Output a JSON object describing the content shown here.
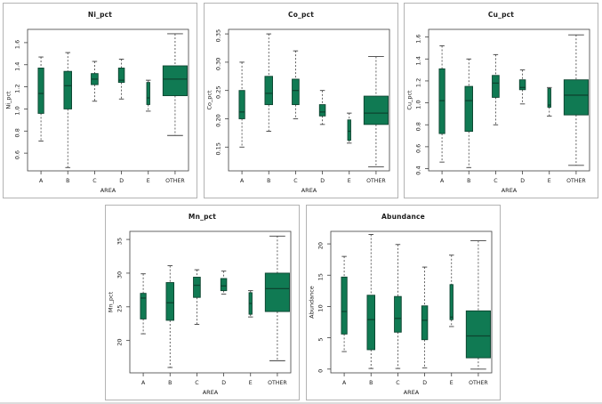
{
  "figure": {
    "background": "#ffffff",
    "panel_border_color": "#b3b3b3"
  },
  "style": {
    "box_fill": "#107a53",
    "box_border": "#0d4430",
    "median_color": "#0d4430",
    "whisker_color": "#3f3f3f",
    "frame_color": "#3f3f3f",
    "text_color": "#1a1a1a"
  },
  "chart_data": [
    {
      "type": "boxplot",
      "title": "Ni_pct",
      "xlabel": "AREA",
      "ylabel": "Ni_pct",
      "categories": [
        "A",
        "B",
        "C",
        "D",
        "E",
        "OTHER"
      ],
      "ylim": [
        0.44,
        1.72
      ],
      "yticks": [
        {
          "v": 0.6,
          "label": "0.6"
        },
        {
          "v": 0.8,
          "label": "0.8"
        },
        {
          "v": 1.0,
          "label": "1.0"
        },
        {
          "v": 1.2,
          "label": "1.2"
        },
        {
          "v": 1.4,
          "label": "1.4"
        },
        {
          "v": 1.6,
          "label": "1.6"
        }
      ],
      "boxes": [
        {
          "category": "A",
          "low": 0.71,
          "q1": 0.96,
          "median": 1.14,
          "q3": 1.37,
          "high": 1.47,
          "width": 0.22
        },
        {
          "category": "B",
          "low": 0.47,
          "q1": 1.0,
          "median": 1.21,
          "q3": 1.34,
          "high": 1.51,
          "width": 0.3
        },
        {
          "category": "C",
          "low": 1.07,
          "q1": 1.22,
          "median": 1.27,
          "q3": 1.32,
          "high": 1.43,
          "width": 0.27
        },
        {
          "category": "D",
          "low": 1.09,
          "q1": 1.24,
          "median": 1.26,
          "q3": 1.37,
          "high": 1.45,
          "width": 0.23
        },
        {
          "category": "E",
          "low": 0.98,
          "q1": 1.04,
          "median": 1.1,
          "q3": 1.24,
          "high": 1.26,
          "width": 0.12
        },
        {
          "category": "OTHER",
          "low": 0.76,
          "q1": 1.12,
          "median": 1.27,
          "q3": 1.39,
          "high": 1.68,
          "width": 0.95
        }
      ]
    },
    {
      "type": "boxplot",
      "title": "Co_pct",
      "xlabel": "AREA",
      "ylabel": "Co_pct",
      "categories": [
        "A",
        "B",
        "C",
        "D",
        "E",
        "OTHER"
      ],
      "ylim": [
        0.108,
        0.358
      ],
      "yticks": [
        {
          "v": 0.15,
          "label": "0.15"
        },
        {
          "v": 0.2,
          "label": "0.20"
        },
        {
          "v": 0.25,
          "label": "0.25"
        },
        {
          "v": 0.3,
          "label": "0.30"
        },
        {
          "v": 0.35,
          "label": "0.35"
        }
      ],
      "boxes": [
        {
          "category": "A",
          "low": 0.15,
          "q1": 0.2,
          "median": 0.212,
          "q3": 0.25,
          "high": 0.3,
          "width": 0.22
        },
        {
          "category": "B",
          "low": 0.178,
          "q1": 0.225,
          "median": 0.245,
          "q3": 0.275,
          "high": 0.35,
          "width": 0.3
        },
        {
          "category": "C",
          "low": 0.2,
          "q1": 0.225,
          "median": 0.25,
          "q3": 0.27,
          "high": 0.32,
          "width": 0.27
        },
        {
          "category": "D",
          "low": 0.19,
          "q1": 0.205,
          "median": 0.212,
          "q3": 0.225,
          "high": 0.25,
          "width": 0.23
        },
        {
          "category": "E",
          "low": 0.157,
          "q1": 0.162,
          "median": 0.178,
          "q3": 0.198,
          "high": 0.21,
          "width": 0.12
        },
        {
          "category": "OTHER",
          "low": 0.115,
          "q1": 0.19,
          "median": 0.21,
          "q3": 0.24,
          "high": 0.31,
          "width": 0.95
        }
      ]
    },
    {
      "type": "boxplot",
      "title": "Cu_pct",
      "xlabel": "AREA",
      "ylabel": "Cu_pct",
      "categories": [
        "A",
        "B",
        "C",
        "D",
        "E",
        "OTHER"
      ],
      "ylim": [
        0.38,
        1.67
      ],
      "yticks": [
        {
          "v": 0.4,
          "label": "0.4"
        },
        {
          "v": 0.6,
          "label": "0.6"
        },
        {
          "v": 0.8,
          "label": "0.8"
        },
        {
          "v": 1.0,
          "label": "1.0"
        },
        {
          "v": 1.2,
          "label": "1.2"
        },
        {
          "v": 1.4,
          "label": "1.4"
        },
        {
          "v": 1.6,
          "label": "1.6"
        }
      ],
      "boxes": [
        {
          "category": "A",
          "low": 0.46,
          "q1": 0.72,
          "median": 1.02,
          "q3": 1.31,
          "high": 1.52,
          "width": 0.22
        },
        {
          "category": "B",
          "low": 0.41,
          "q1": 0.74,
          "median": 1.02,
          "q3": 1.15,
          "high": 1.4,
          "width": 0.3
        },
        {
          "category": "C",
          "low": 0.8,
          "q1": 1.05,
          "median": 1.18,
          "q3": 1.25,
          "high": 1.44,
          "width": 0.27
        },
        {
          "category": "D",
          "low": 0.99,
          "q1": 1.12,
          "median": 1.14,
          "q3": 1.21,
          "high": 1.3,
          "width": 0.23
        },
        {
          "category": "E",
          "low": 0.88,
          "q1": 0.96,
          "median": 0.98,
          "q3": 1.13,
          "high": 1.14,
          "width": 0.12
        },
        {
          "category": "OTHER",
          "low": 0.43,
          "q1": 0.89,
          "median": 1.07,
          "q3": 1.21,
          "high": 1.62,
          "width": 0.95
        }
      ]
    },
    {
      "type": "boxplot",
      "title": "Mn_pct",
      "xlabel": "AREA",
      "ylabel": "Mn_pct",
      "categories": [
        "A",
        "B",
        "C",
        "D",
        "E",
        "OTHER"
      ],
      "ylim": [
        15.2,
        36.2
      ],
      "yticks": [
        {
          "v": 20,
          "label": "20"
        },
        {
          "v": 25,
          "label": "25"
        },
        {
          "v": 30,
          "label": "30"
        },
        {
          "v": 35,
          "label": "35"
        }
      ],
      "boxes": [
        {
          "category": "A",
          "low": 21.0,
          "q1": 23.2,
          "median": 26.3,
          "q3": 27.0,
          "high": 29.9,
          "width": 0.22
        },
        {
          "category": "B",
          "low": 16.0,
          "q1": 23.0,
          "median": 25.6,
          "q3": 28.6,
          "high": 31.1,
          "width": 0.3
        },
        {
          "category": "C",
          "low": 22.4,
          "q1": 26.4,
          "median": 28.2,
          "q3": 29.4,
          "high": 30.5,
          "width": 0.27
        },
        {
          "category": "D",
          "low": 26.9,
          "q1": 27.4,
          "median": 28.1,
          "q3": 29.2,
          "high": 30.3,
          "width": 0.23
        },
        {
          "category": "E",
          "low": 23.5,
          "q1": 23.9,
          "median": 25.5,
          "q3": 27.1,
          "high": 27.4,
          "width": 0.12
        },
        {
          "category": "OTHER",
          "low": 17.0,
          "q1": 24.3,
          "median": 27.7,
          "q3": 30.0,
          "high": 35.5,
          "width": 0.95
        }
      ]
    },
    {
      "type": "boxplot",
      "title": "Abundance",
      "xlabel": "AREA",
      "ylabel": "Abundance",
      "categories": [
        "A",
        "B",
        "C",
        "D",
        "E",
        "OTHER"
      ],
      "ylim": [
        -0.6,
        22.0
      ],
      "yticks": [
        {
          "v": 0,
          "label": "0"
        },
        {
          "v": 5,
          "label": "5"
        },
        {
          "v": 10,
          "label": "10"
        },
        {
          "v": 15,
          "label": "15"
        },
        {
          "v": 20,
          "label": "20"
        }
      ],
      "boxes": [
        {
          "category": "A",
          "low": 2.8,
          "q1": 5.6,
          "median": 9.2,
          "q3": 14.7,
          "high": 18.0,
          "width": 0.22
        },
        {
          "category": "B",
          "low": 0.1,
          "q1": 3.1,
          "median": 7.9,
          "q3": 11.8,
          "high": 21.5,
          "width": 0.3
        },
        {
          "category": "C",
          "low": 0.1,
          "q1": 5.9,
          "median": 8.1,
          "q3": 11.6,
          "high": 19.9,
          "width": 0.27
        },
        {
          "category": "D",
          "low": 0.2,
          "q1": 4.7,
          "median": 7.8,
          "q3": 10.1,
          "high": 16.3,
          "width": 0.23
        },
        {
          "category": "E",
          "low": 6.8,
          "q1": 7.9,
          "median": 8.3,
          "q3": 13.5,
          "high": 18.2,
          "width": 0.12
        },
        {
          "category": "OTHER",
          "low": 0.0,
          "q1": 1.8,
          "median": 5.3,
          "q3": 9.3,
          "high": 20.5,
          "width": 0.95
        }
      ]
    }
  ]
}
